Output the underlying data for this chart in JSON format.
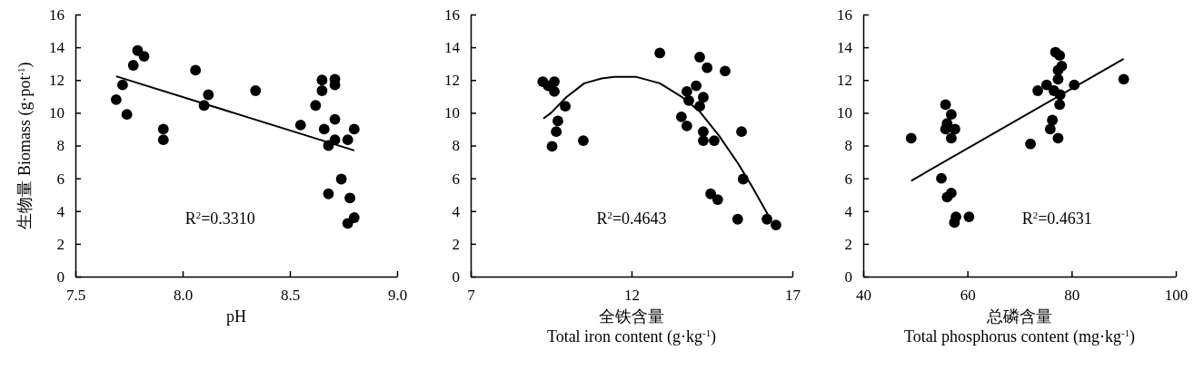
{
  "chart_data": [
    {
      "type": "scatter",
      "ylabel": "生物量 Biomass (g·pot$^{-1}$)",
      "xlabel": "pH",
      "xlim": [
        7.5,
        9.0
      ],
      "xticks": [
        {
          "value": 7.5,
          "label": "7.5"
        },
        {
          "value": 8,
          "label": "8.0"
        },
        {
          "value": 8.5,
          "label": "8.5"
        },
        {
          "value": 9,
          "label": "9.0"
        }
      ],
      "ylim": [
        0,
        16
      ],
      "yticks": [
        0,
        2,
        4,
        6,
        8,
        10,
        12,
        14,
        16
      ],
      "annotations": [
        "R$^{2}$=0.3310"
      ],
      "series": [
        {
          "marker": "circle",
          "color": "#000000",
          "x": [
            7.69,
            7.72,
            7.74,
            7.77,
            7.79,
            7.82,
            7.91,
            7.91,
            8.06,
            8.1,
            8.12,
            8.34,
            8.55,
            8.62,
            8.65,
            8.65,
            8.66,
            8.68,
            8.68,
            8.71,
            8.71,
            8.71,
            8.71,
            8.74,
            8.77,
            8.78,
            8.8,
            8.77,
            8.8
          ],
          "values": [
            10.8,
            11.7,
            9.9,
            12.9,
            13.8,
            13.45,
            9.0,
            8.35,
            12.6,
            10.45,
            11.1,
            11.35,
            9.25,
            10.45,
            12.0,
            11.35,
            9.0,
            8.0,
            5.05,
            12.05,
            11.7,
            9.6,
            8.35,
            5.95,
            8.35,
            4.8,
            9.0,
            3.25,
            3.6
          ]
        },
        {
          "type": "line",
          "marker": "none",
          "color": "#000000",
          "x": [
            7.69,
            8.8
          ],
          "values": [
            12.23,
            7.7
          ]
        }
      ]
    },
    {
      "type": "scatter",
      "xlabel": "全铁含量\nTotal iron content (g·kg$^{-1}$)",
      "xlim": [
        7,
        17
      ],
      "xticks": [
        7,
        12,
        17
      ],
      "ylim": [
        0,
        16
      ],
      "yticks": [
        0,
        2,
        4,
        6,
        8,
        10,
        12,
        14,
        16
      ],
      "annotations": [
        "R$^{2}$=0.4643"
      ],
      "series": [
        {
          "marker": "circle",
          "color": "#000000",
          "x": [
            9.24,
            9.41,
            9.6,
            9.6,
            9.94,
            9.71,
            9.66,
            9.53,
            10.5,
            12.88,
            14.12,
            14.35,
            14.91,
            14.01,
            13.72,
            13.78,
            14.23,
            14.12,
            13.55,
            13.72,
            14.23,
            14.23,
            14.57,
            15.42,
            15.47,
            14.46,
            14.68,
            15.3,
            16.21,
            16.49
          ],
          "values": [
            11.9,
            11.65,
            11.9,
            11.3,
            10.4,
            9.5,
            8.85,
            7.95,
            8.3,
            13.65,
            13.4,
            12.75,
            12.55,
            11.65,
            11.3,
            10.75,
            10.95,
            10.4,
            9.75,
            9.2,
            8.85,
            8.3,
            8.3,
            8.85,
            5.95,
            5.05,
            4.7,
            3.5,
            3.5,
            3.15
          ]
        },
        {
          "type": "line",
          "marker": "none",
          "color": "#000000",
          "x": [
            9.26,
            9.5,
            9.97,
            10.53,
            11.07,
            11.47,
            12.13,
            12.88,
            13.54,
            14.11,
            14.72,
            15.33,
            15.76,
            16.32
          ],
          "values": [
            9.65,
            10.0,
            10.95,
            11.8,
            12.1,
            12.2,
            12.2,
            11.8,
            11.0,
            10.1,
            8.6,
            6.85,
            5.45,
            3.5
          ]
        }
      ]
    },
    {
      "type": "scatter",
      "xlabel": "总磷含量\nTotal phosphorus content (mg·kg$^{-1}$)",
      "xlim": [
        40,
        100
      ],
      "xticks": [
        40,
        60,
        80,
        100
      ],
      "ylim": [
        0,
        16
      ],
      "yticks": [
        0,
        2,
        4,
        6,
        8,
        10,
        12,
        14,
        16
      ],
      "annotations": [
        "R$^{2}$=0.4631"
      ],
      "series": [
        {
          "marker": "circle",
          "color": "#000000",
          "x": [
            49.2,
            55.8,
            56.9,
            56.1,
            55.8,
            57.6,
            56.9,
            55.0,
            56.9,
            56.1,
            57.8,
            57.5,
            60.3,
            72.1,
            73.5,
            75.2,
            76.6,
            76.9,
            77.7,
            78.1,
            77.4,
            77.4,
            77.8,
            77.7,
            76.3,
            75.9,
            77.4,
            80.5,
            90.0
          ],
          "values": [
            8.45,
            10.5,
            9.9,
            9.35,
            9.0,
            9.0,
            8.45,
            6.0,
            5.1,
            4.85,
            3.65,
            3.3,
            3.65,
            8.1,
            11.35,
            11.7,
            11.35,
            13.7,
            13.5,
            12.85,
            12.6,
            12.05,
            11.1,
            10.5,
            9.55,
            9.0,
            8.45,
            11.7,
            12.05
          ]
        },
        {
          "type": "line",
          "marker": "none",
          "color": "#000000",
          "x": [
            49.2,
            90.0
          ],
          "values": [
            5.85,
            13.3
          ]
        }
      ]
    }
  ]
}
